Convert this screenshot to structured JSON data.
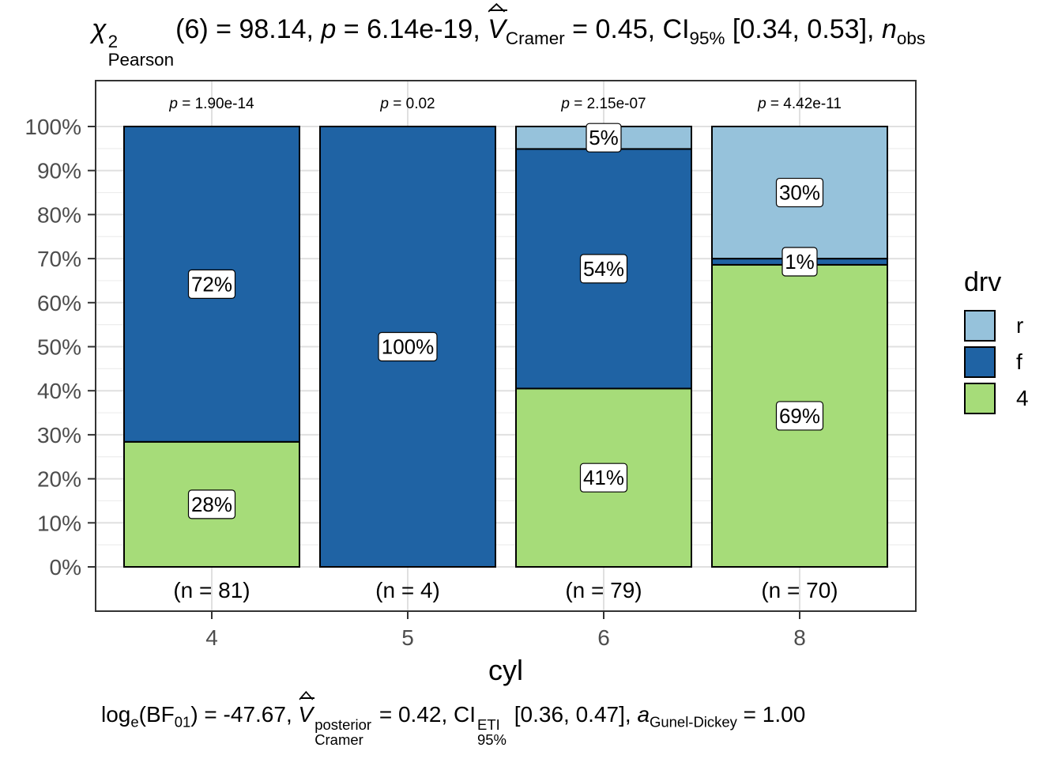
{
  "title": {
    "chi": "χ",
    "chi_sup": "2",
    "chi_sub": "Pearson",
    "df": "(6) = 98.14, ",
    "p_label": "p",
    "p_value": " = 6.14e-19, ",
    "v_label": "V",
    "v_sub": "Cramer",
    "v_value": " = 0.45, CI",
    "ci_sub": "95%",
    "ci_value": " [0.34, 0.53], ",
    "n_label": "n",
    "n_sub": "obs"
  },
  "subtitle": {
    "log_prefix": "log",
    "log_sub": "e",
    "bf": "(BF",
    "bf_sub": "01",
    "bf_value": ") = -47.67, ",
    "v_label": "V",
    "v_sup": "posterior",
    "v_sub": "Cramer",
    "v_value": " = 0.42, CI",
    "ci_sup": "ETI",
    "ci_sub": "95%",
    "ci_value": " [0.36, 0.47], ",
    "a_label": "a",
    "a_sub": "Gunel-Dickey",
    "a_value": " = 1.00"
  },
  "chart_data": {
    "type": "bar",
    "stacked": true,
    "categories": [
      "4",
      "5",
      "6",
      "8"
    ],
    "xlabel": "cyl",
    "ylabel": "",
    "ylim": [
      0,
      100
    ],
    "yticks": [
      "0%",
      "10%",
      "20%",
      "30%",
      "40%",
      "50%",
      "60%",
      "70%",
      "80%",
      "90%",
      "100%"
    ],
    "series": [
      {
        "name": "4",
        "color": "#a6dc79",
        "values": [
          28.4,
          0,
          40.5,
          68.6
        ],
        "labels": [
          "28%",
          "",
          "41%",
          "69%"
        ]
      },
      {
        "name": "f",
        "color": "#1f63a4",
        "values": [
          71.6,
          100,
          54.4,
          1.4
        ],
        "labels": [
          "72%",
          "100%",
          "54%",
          "1%"
        ]
      },
      {
        "name": "r",
        "color": "#96c2db",
        "values": [
          0,
          0,
          5.1,
          30.0
        ],
        "labels": [
          "",
          "",
          "5%",
          "30%"
        ]
      }
    ],
    "p_labels": [
      " = 1.90e-14",
      " = 0.02",
      " = 2.15e-07",
      " = 4.42e-11"
    ],
    "p_prefix": "p",
    "n_labels": [
      "(n = 81)",
      "(n = 4)",
      "(n = 79)",
      "(n = 70)"
    ],
    "legend": {
      "title": "drv",
      "entries": [
        "r",
        "f",
        "4"
      ],
      "colors": [
        "#96c2db",
        "#1f63a4",
        "#a6dc79"
      ],
      "placement": "right"
    },
    "grid": true
  }
}
